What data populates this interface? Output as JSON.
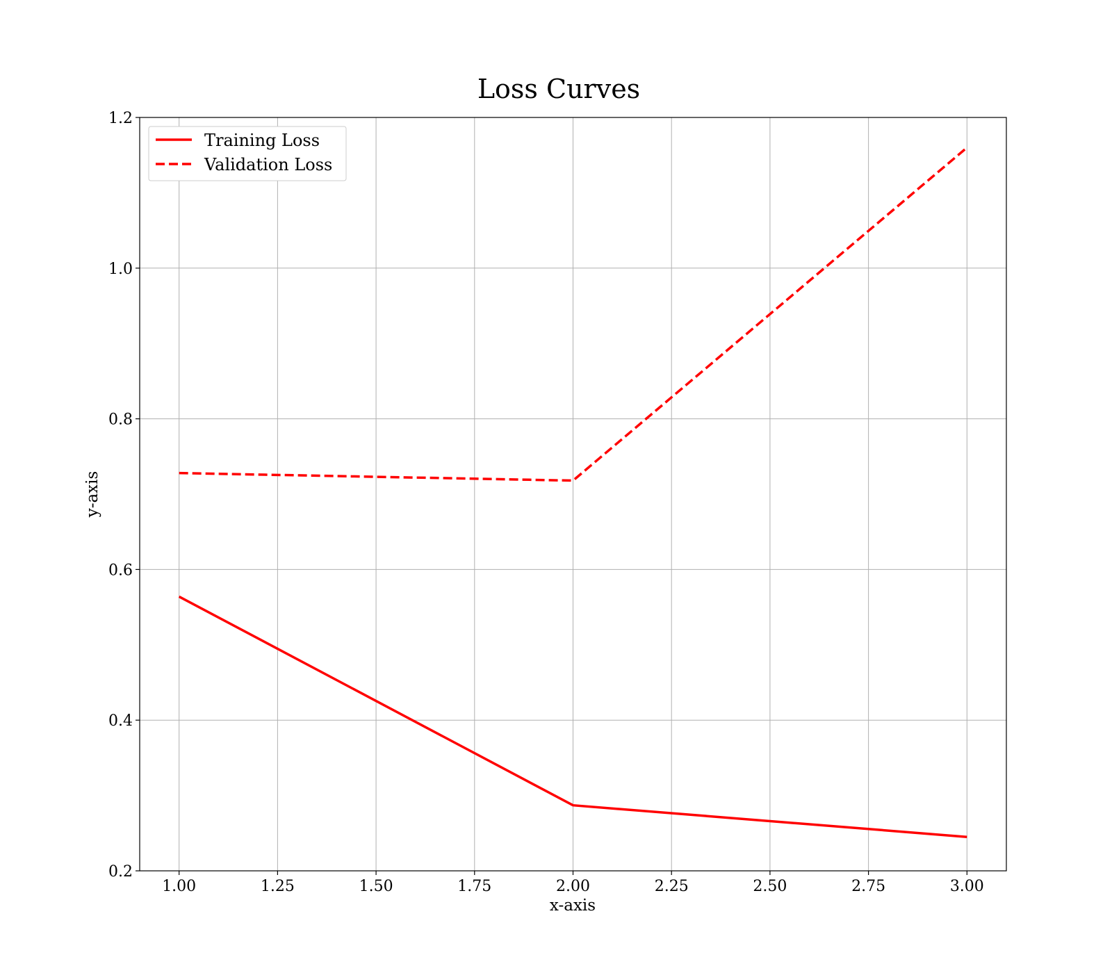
{
  "chart_data": {
    "type": "line",
    "title": "Loss Curves",
    "xlabel": "x-axis",
    "ylabel": "y-axis",
    "xlim": [
      0.9,
      3.1
    ],
    "ylim": [
      0.2,
      1.2
    ],
    "xticks": [
      1.0,
      1.25,
      1.5,
      1.75,
      2.0,
      2.25,
      2.5,
      2.75,
      3.0
    ],
    "xtick_labels": [
      "1.00",
      "1.25",
      "1.50",
      "1.75",
      "2.00",
      "2.25",
      "2.50",
      "2.75",
      "3.00"
    ],
    "yticks": [
      0.2,
      0.4,
      0.6,
      0.8,
      1.0,
      1.2
    ],
    "ytick_labels": [
      "0.2",
      "0.4",
      "0.6",
      "0.8",
      "1.0",
      "1.2"
    ],
    "grid": true,
    "legend_position": "upper-left",
    "x": [
      1,
      2,
      3
    ],
    "series": [
      {
        "name": "Training Loss",
        "values": [
          0.564,
          0.287,
          0.245
        ],
        "color": "#ff0000",
        "style": "solid"
      },
      {
        "name": "Validation Loss",
        "values": [
          0.728,
          0.718,
          1.16
        ],
        "color": "#ff0000",
        "style": "dashed"
      }
    ]
  }
}
